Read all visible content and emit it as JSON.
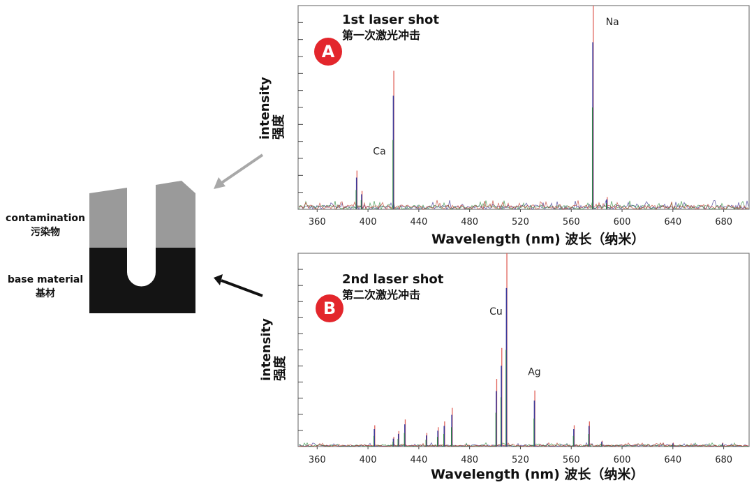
{
  "sample": {
    "contamination_label": "contamination",
    "contamination_label_zh": "污染物",
    "base_label": "base material",
    "base_label_zh": "基材"
  },
  "colors": {
    "contamination": "#9a9a9a",
    "base": "#141414",
    "badge": "#e3262c",
    "frame": "#7a7a7a"
  },
  "chart_data": [
    {
      "type": "line",
      "badge": "A",
      "title": "1st laser shot",
      "title_zh": "第一次激光冲击",
      "xlabel": "Wavelength (nm) 波长（纳米）",
      "ylabel": "intensity",
      "ylabel_zh": "强度",
      "xlim": [
        345,
        700
      ],
      "xticks": [
        360,
        400,
        440,
        480,
        520,
        560,
        600,
        640,
        680
      ],
      "ylim": [
        0,
        100
      ],
      "grid": false,
      "peaks": [
        {
          "x": 391,
          "y": 19
        },
        {
          "x": 395,
          "y": 9
        },
        {
          "x": 420,
          "y": 68
        },
        {
          "x": 577,
          "y": 100
        },
        {
          "x": 588,
          "y": 6
        }
      ],
      "annotations": [
        {
          "text": "Ca",
          "x": 420,
          "y": 68
        },
        {
          "text": "Na",
          "x": 577,
          "y": 100
        }
      ]
    },
    {
      "type": "line",
      "badge": "B",
      "title": "2nd laser shot",
      "title_zh": "第二次激光冲击",
      "xlabel": "Wavelength (nm) 波长（纳米）",
      "ylabel": "intensity",
      "ylabel_zh": "强度",
      "xlim": [
        345,
        700
      ],
      "xticks": [
        360,
        400,
        440,
        480,
        520,
        560,
        600,
        640,
        680
      ],
      "ylim": [
        0,
        100
      ],
      "grid": false,
      "peaks": [
        {
          "x": 405,
          "y": 11
        },
        {
          "x": 420,
          "y": 5
        },
        {
          "x": 424,
          "y": 8
        },
        {
          "x": 429,
          "y": 14
        },
        {
          "x": 446,
          "y": 7
        },
        {
          "x": 455,
          "y": 10
        },
        {
          "x": 460,
          "y": 13
        },
        {
          "x": 466,
          "y": 20
        },
        {
          "x": 501,
          "y": 35
        },
        {
          "x": 505,
          "y": 51
        },
        {
          "x": 509,
          "y": 100
        },
        {
          "x": 531,
          "y": 29
        },
        {
          "x": 562,
          "y": 11
        },
        {
          "x": 574,
          "y": 13
        },
        {
          "x": 584,
          "y": 3
        },
        {
          "x": 640,
          "y": 2
        },
        {
          "x": 679,
          "y": 2
        }
      ],
      "annotations": [
        {
          "text": "Cu",
          "x": 509,
          "y": 100
        },
        {
          "text": "Ag",
          "x": 531,
          "y": 29
        }
      ]
    }
  ]
}
